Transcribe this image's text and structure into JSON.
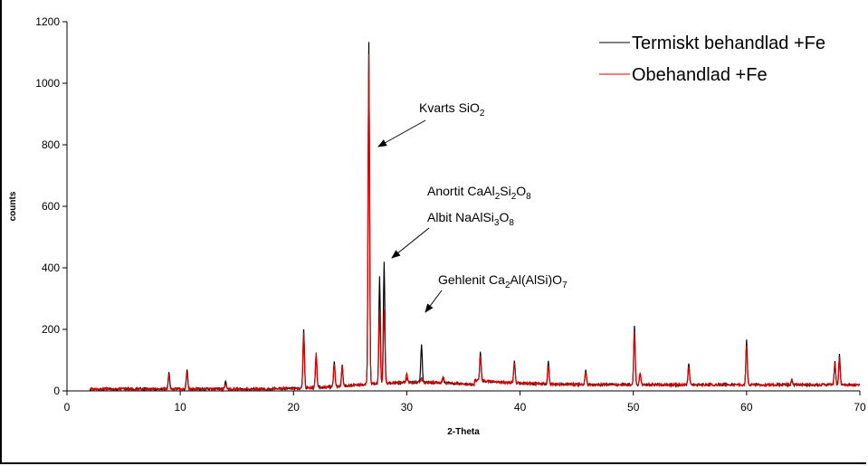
{
  "chart_data": {
    "type": "line",
    "title": "",
    "xlabel": "2-Theta",
    "ylabel": "counts",
    "xlim": [
      0,
      70
    ],
    "ylim": [
      0,
      1200
    ],
    "xticks": [
      0,
      10,
      20,
      30,
      40,
      50,
      60,
      70
    ],
    "yticks": [
      0,
      200,
      400,
      600,
      800,
      1000,
      1200
    ],
    "grid": false,
    "legend_position": "top-right",
    "series": [
      {
        "name": "Termiskt behandlad +Fe",
        "color": "#000000",
        "peaks": [
          [
            9.0,
            62
          ],
          [
            10.6,
            72
          ],
          [
            14.0,
            28
          ],
          [
            20.9,
            200
          ],
          [
            22.0,
            118
          ],
          [
            23.6,
            98
          ],
          [
            24.3,
            85
          ],
          [
            26.65,
            1135
          ],
          [
            27.6,
            372
          ],
          [
            28.0,
            418
          ],
          [
            30.0,
            40
          ],
          [
            31.3,
            155
          ],
          [
            33.2,
            45
          ],
          [
            36.5,
            125
          ],
          [
            39.5,
            100
          ],
          [
            42.5,
            95
          ],
          [
            45.8,
            70
          ],
          [
            50.1,
            215
          ],
          [
            50.6,
            60
          ],
          [
            54.9,
            90
          ],
          [
            60.0,
            165
          ],
          [
            64.0,
            35
          ],
          [
            67.8,
            95
          ],
          [
            68.2,
            118
          ]
        ]
      },
      {
        "name": "Obehandlad +Fe",
        "color": "#e00000",
        "peaks": [
          [
            9.0,
            50
          ],
          [
            10.6,
            60
          ],
          [
            14.0,
            25
          ],
          [
            20.9,
            190
          ],
          [
            22.0,
            125
          ],
          [
            23.6,
            90
          ],
          [
            24.3,
            80
          ],
          [
            26.65,
            1095
          ],
          [
            27.6,
            260
          ],
          [
            28.0,
            265
          ],
          [
            30.0,
            55
          ],
          [
            31.3,
            40
          ],
          [
            33.2,
            45
          ],
          [
            36.5,
            110
          ],
          [
            39.5,
            90
          ],
          [
            42.5,
            85
          ],
          [
            45.8,
            65
          ],
          [
            50.1,
            195
          ],
          [
            50.6,
            60
          ],
          [
            54.9,
            80
          ],
          [
            60.0,
            150
          ],
          [
            64.0,
            35
          ],
          [
            67.8,
            90
          ],
          [
            68.2,
            110
          ]
        ]
      }
    ],
    "annotations": [
      {
        "text": "Kvarts SiO",
        "sub": "2",
        "tail": "",
        "arrow_to": [
          27.2,
          800
        ]
      },
      {
        "text": "Anortit CaAl",
        "sub": "2",
        "tail": "Si",
        "sub2": "2",
        "tail2": "O",
        "sub3": "8"
      },
      {
        "text": "Albit NaAlSi",
        "sub": "3",
        "tail": "O",
        "sub2": "8",
        "arrow_to": [
          28.3,
          420
        ]
      },
      {
        "text": "Gehlenit Ca",
        "sub": "2",
        "tail": "Al(AlSi)O",
        "sub2": "7",
        "arrow_to": [
          31.6,
          170
        ]
      }
    ]
  }
}
